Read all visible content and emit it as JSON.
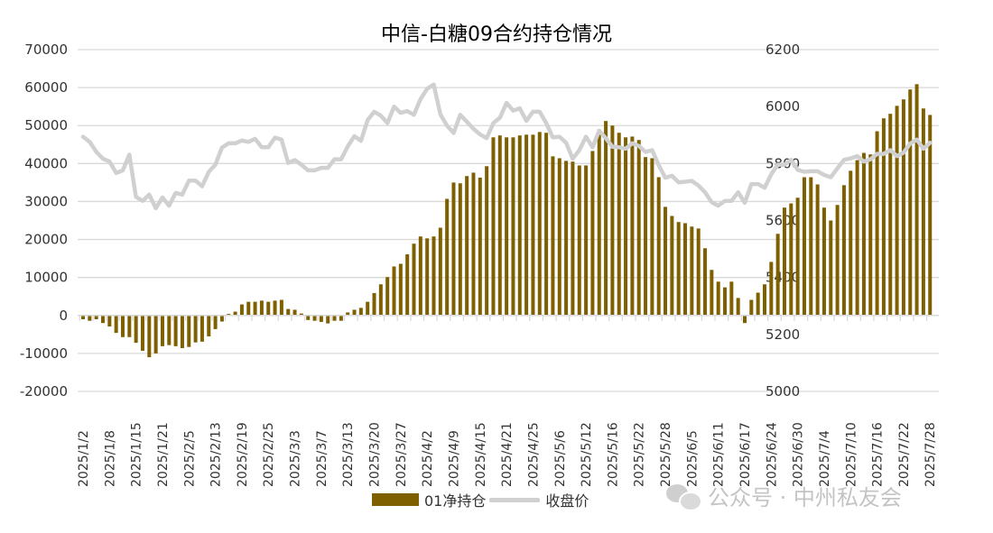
{
  "chart_data": {
    "type": "bar+line",
    "title": "中信-白糖09合约持仓情况",
    "left_axis": {
      "ylim": [
        -20000,
        70000
      ],
      "ticks": [
        "70000",
        "60000",
        "50000",
        "40000",
        "30000",
        "20000",
        "10000",
        "0",
        "-10000",
        "-20000"
      ],
      "tick_values": [
        70000,
        60000,
        50000,
        40000,
        30000,
        20000,
        10000,
        0,
        -10000,
        -20000
      ]
    },
    "right_axis": {
      "ylim": [
        5000,
        6200
      ],
      "ticks": [
        "6200",
        "6000",
        "5800",
        "5600",
        "5400",
        "5200",
        "5000"
      ],
      "tick_values": [
        6200,
        6000,
        5800,
        5600,
        5400,
        5200,
        5000
      ]
    },
    "x_tick_labels": [
      "2025/1/2",
      "2025/1/8",
      "2025/1/15",
      "2025/1/21",
      "2025/2/5",
      "2025/2/13",
      "2025/2/19",
      "2025/2/25",
      "2025/3/3",
      "2025/3/7",
      "2025/3/13",
      "2025/3/20",
      "2025/3/27",
      "2025/4/2",
      "2025/4/9",
      "2025/4/15",
      "2025/4/21",
      "2025/4/25",
      "2025/5/6",
      "2025/5/12",
      "2025/5/16",
      "2025/5/22",
      "2025/5/28",
      "2025/6/5",
      "2025/6/11",
      "2025/6/17",
      "2025/6/24",
      "2025/6/30",
      "2025/7/4",
      "2025/7/10",
      "2025/7/16",
      "2025/7/22",
      "2025/7/28"
    ],
    "label_every": 4,
    "grid": true,
    "legend_position": "bottom",
    "series": [
      {
        "name": "01净持仓",
        "type": "bar",
        "axis": "left",
        "color": "#7f6000",
        "values": [
          -1000,
          -1400,
          -1000,
          -2000,
          -2900,
          -4600,
          -5700,
          -5700,
          -7200,
          -9300,
          -11000,
          -10000,
          -8100,
          -7800,
          -8100,
          -8600,
          -8300,
          -7100,
          -6900,
          -5500,
          -3600,
          -1600,
          400,
          1000,
          2900,
          3600,
          3600,
          3900,
          3600,
          3900,
          4100,
          1700,
          1500,
          500,
          -1200,
          -1400,
          -1700,
          -2100,
          -1400,
          -1400,
          800,
          1500,
          2000,
          3600,
          5900,
          8200,
          10100,
          12900,
          13600,
          16100,
          18900,
          20800,
          20300,
          20800,
          23100,
          30700,
          35000,
          34800,
          36700,
          37600,
          36300,
          39300,
          46900,
          47400,
          46900,
          46900,
          47400,
          47600,
          47600,
          48300,
          48100,
          41900,
          41400,
          40700,
          40500,
          39500,
          39500,
          43300,
          49000,
          51200,
          50000,
          48100,
          46900,
          47100,
          46200,
          41700,
          41400,
          36400,
          28600,
          26200,
          24600,
          24300,
          23400,
          22900,
          17700,
          12000,
          8900,
          7400,
          8900,
          4600,
          -2000,
          4100,
          6000,
          8200,
          14100,
          21500,
          28400,
          29500,
          31000,
          36400,
          36400,
          34500,
          28400,
          25000,
          29100,
          34300,
          38100,
          40900,
          42800,
          42400,
          48500,
          51900,
          53100,
          55200,
          56900,
          59500,
          60900,
          54500,
          52800
        ]
      },
      {
        "name": "收盘价",
        "type": "line",
        "axis": "right",
        "color": "#d0d0d0",
        "values": [
          5894,
          5876,
          5841,
          5817,
          5807,
          5767,
          5776,
          5831,
          5683,
          5669,
          5691,
          5643,
          5681,
          5652,
          5697,
          5691,
          5740,
          5740,
          5720,
          5771,
          5796,
          5856,
          5871,
          5871,
          5881,
          5876,
          5887,
          5857,
          5857,
          5891,
          5884,
          5802,
          5812,
          5796,
          5776,
          5776,
          5785,
          5785,
          5815,
          5815,
          5860,
          5896,
          5880,
          5952,
          5982,
          5968,
          5942,
          6000,
          5978,
          5984,
          5971,
          6026,
          6063,
          6077,
          5973,
          5933,
          5907,
          5971,
          5947,
          5922,
          5902,
          5889,
          5942,
          5961,
          6013,
          5986,
          5994,
          5950,
          5982,
          5982,
          5942,
          5892,
          5894,
          5873,
          5817,
          5847,
          5894,
          5857,
          5915,
          5889,
          5859,
          5857,
          5852,
          5871,
          5862,
          5841,
          5847,
          5794,
          5750,
          5757,
          5734,
          5736,
          5739,
          5723,
          5699,
          5664,
          5652,
          5669,
          5669,
          5699,
          5662,
          5728,
          5728,
          5715,
          5762,
          5796,
          5796,
          5813,
          5778,
          5771,
          5773,
          5773,
          5760,
          5752,
          5783,
          5813,
          5818,
          5826,
          5807,
          5815,
          5834,
          5834,
          5847,
          5826,
          5838,
          5870,
          5884,
          5852,
          5873
        ]
      }
    ]
  },
  "legend": {
    "bar_label": "01净持仓",
    "line_label": "收盘价"
  },
  "watermark": {
    "text": "公众号 · 中州私友会"
  }
}
